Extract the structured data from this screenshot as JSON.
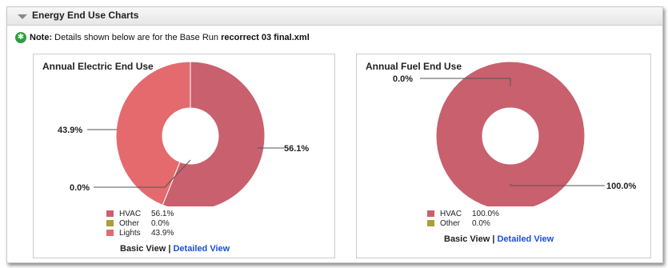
{
  "header": {
    "title": "Energy End Use Charts"
  },
  "note": {
    "label": "Note:",
    "text": "Details shown below are for the Base Run",
    "file": "recorrect 03 final.xml"
  },
  "electric": {
    "title": "Annual Electric End Use",
    "labels": {
      "hvac": "56.1%",
      "other": "0.0%",
      "lights": "43.9%"
    },
    "legend": [
      {
        "name": "HVAC",
        "value": "56.1%",
        "color": "#c9606e"
      },
      {
        "name": "Other",
        "value": "0.0%",
        "color": "#a8a03a"
      },
      {
        "name": "Lights",
        "value": "43.9%",
        "color": "#e46a6e"
      }
    ],
    "basic_view": "Basic View",
    "separator": "|",
    "detailed_view": "Detailed View"
  },
  "fuel": {
    "title": "Annual Fuel End Use",
    "labels": {
      "other": "0.0%",
      "hvac": "100.0%"
    },
    "legend": [
      {
        "name": "HVAC",
        "value": "100.0%",
        "color": "#c9606e"
      },
      {
        "name": "Other",
        "value": "0.0%",
        "color": "#a8a03a"
      }
    ],
    "basic_view": "Basic View",
    "separator": "|",
    "detailed_view": "Detailed View"
  },
  "chart_data": [
    {
      "type": "pie",
      "title": "Annual Electric End Use",
      "categories": [
        "HVAC",
        "Other",
        "Lights"
      ],
      "values": [
        56.1,
        0.0,
        43.9
      ],
      "colors": [
        "#c9606e",
        "#a8a03a",
        "#e46a6e"
      ],
      "donut": true
    },
    {
      "type": "pie",
      "title": "Annual Fuel End Use",
      "categories": [
        "HVAC",
        "Other"
      ],
      "values": [
        100.0,
        0.0
      ],
      "colors": [
        "#c9606e",
        "#a8a03a"
      ],
      "donut": true
    }
  ]
}
